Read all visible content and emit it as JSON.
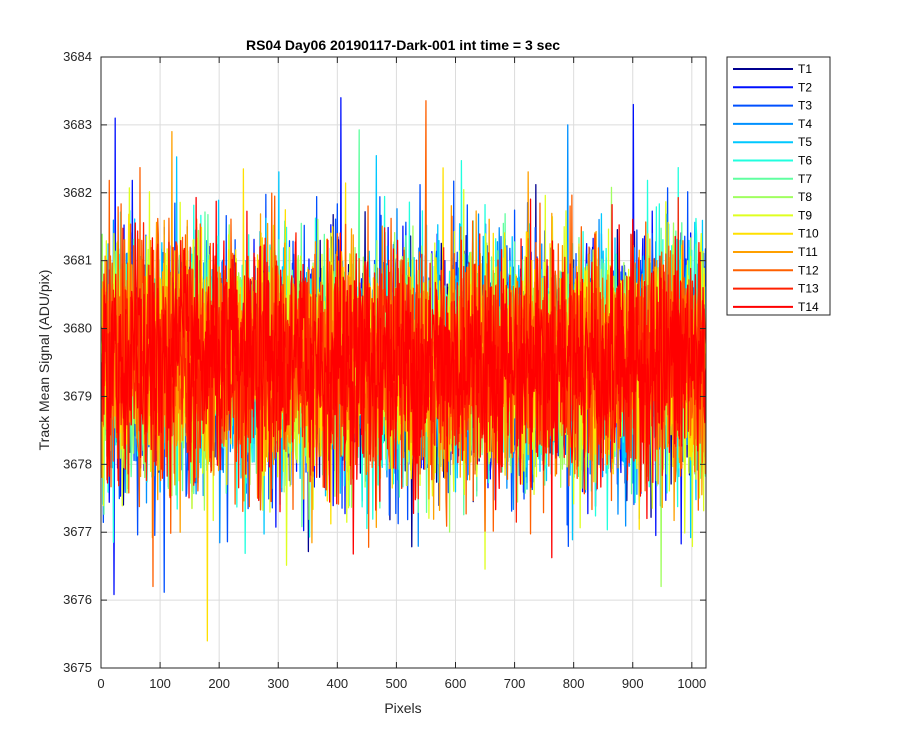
{
  "chart_data": {
    "type": "line",
    "title": "RS04 Day06 20190117-Dark-001 int time = 3 sec",
    "xlabel": "Pixels",
    "ylabel": "Track Mean Signal (ADU/pix)",
    "xlim": [
      0,
      1024
    ],
    "ylim": [
      3675,
      3684
    ],
    "xticks": [
      0,
      100,
      200,
      300,
      400,
      500,
      600,
      700,
      800,
      900,
      1000
    ],
    "yticks": [
      3675,
      3676,
      3677,
      3678,
      3679,
      3680,
      3681,
      3682,
      3683,
      3684
    ],
    "grid": true,
    "legend_position": "outside-top-right",
    "x_range": [
      1,
      1024
    ],
    "mean_level": 3679.5,
    "approx_range": [
      3675.4,
      3683.4
    ],
    "series": [
      {
        "name": "T1",
        "color": "#00008f"
      },
      {
        "name": "T2",
        "color": "#0010ff"
      },
      {
        "name": "T3",
        "color": "#0050ff"
      },
      {
        "name": "T4",
        "color": "#0090ff"
      },
      {
        "name": "T5",
        "color": "#00c8ff"
      },
      {
        "name": "T6",
        "color": "#20ffdf"
      },
      {
        "name": "T7",
        "color": "#60ffa0"
      },
      {
        "name": "T8",
        "color": "#a0ff60"
      },
      {
        "name": "T9",
        "color": "#dfff20"
      },
      {
        "name": "T10",
        "color": "#ffe000"
      },
      {
        "name": "T11",
        "color": "#ffa000"
      },
      {
        "name": "T12",
        "color": "#ff6000"
      },
      {
        "name": "T13",
        "color": "#ff2000"
      },
      {
        "name": "T14",
        "color": "#ff0000"
      }
    ],
    "notable_points": [
      {
        "series": "T2",
        "x": 406,
        "y": 3683.4
      },
      {
        "series": "T2",
        "x": 901,
        "y": 3683.3
      },
      {
        "series": "T2",
        "x": 24,
        "y": 3683.1
      },
      {
        "series": "T10",
        "x": 180,
        "y": 3675.4
      },
      {
        "series": "T8",
        "x": 948,
        "y": 3676.2
      },
      {
        "series": "T12",
        "x": 88,
        "y": 3676.2
      },
      {
        "series": "T4",
        "x": 790,
        "y": 3683.0
      },
      {
        "series": "T11",
        "x": 120,
        "y": 3682.9
      }
    ]
  }
}
